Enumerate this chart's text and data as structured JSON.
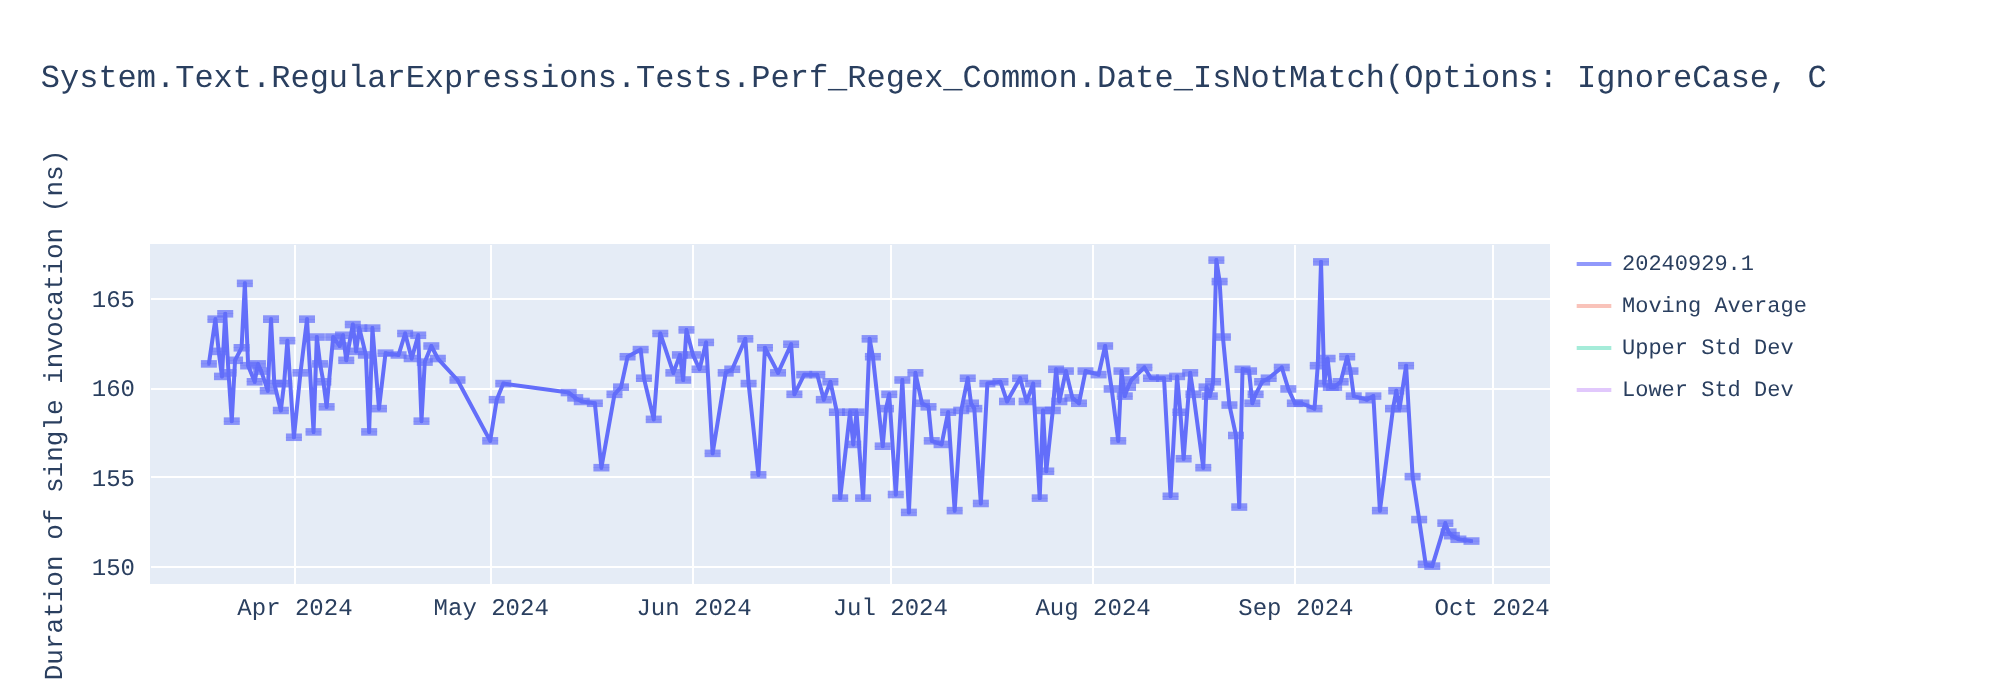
{
  "chart_data": {
    "type": "line",
    "title": "System.Text.RegularExpressions.Tests.Perf_Regex_Common.Date_IsNotMatch(Options: IgnoreCase, C",
    "ylabel": "Duration of single invocation (ns)",
    "x": [
      "2024-03-19",
      "2024-03-20",
      "2024-03-20T12:00",
      "2024-03-21",
      "2024-03-21T12:00",
      "2024-03-22",
      "2024-03-22T12:00",
      "2024-03-23",
      "2024-03-24",
      "2024-03-24T12:00",
      "2024-03-25",
      "2024-03-26",
      "2024-03-26T12:00",
      "2024-03-27",
      "2024-03-28",
      "2024-03-28T12:00",
      "2024-03-29",
      "2024-03-30",
      "2024-03-30T12:00",
      "2024-03-31",
      "2024-04-01",
      "2024-04-02",
      "2024-04-03",
      "2024-04-04",
      "2024-04-04T12:00",
      "2024-04-05",
      "2024-04-05T12:00",
      "2024-04-06",
      "2024-04-07",
      "2024-04-08",
      "2024-04-08T12:00",
      "2024-04-09",
      "2024-04-10",
      "2024-04-10T12:00",
      "2024-04-11",
      "2024-04-12",
      "2024-04-12T12:00",
      "2024-04-13",
      "2024-04-14",
      "2024-04-15",
      "2024-04-17",
      "2024-04-18",
      "2024-04-19",
      "2024-04-20",
      "2024-04-20T12:00",
      "2024-04-21",
      "2024-04-22",
      "2024-04-23",
      "2024-04-26",
      "2024-05-01",
      "2024-05-02",
      "2024-05-03",
      "2024-05-13",
      "2024-05-14",
      "2024-05-15",
      "2024-05-17",
      "2024-05-18",
      "2024-05-20",
      "2024-05-21",
      "2024-05-22",
      "2024-05-24",
      "2024-05-24T12:00",
      "2024-05-26",
      "2024-05-27",
      "2024-05-29",
      "2024-05-30",
      "2024-05-30T12:00",
      "2024-05-31",
      "2024-06-01",
      "2024-06-02",
      "2024-06-03",
      "2024-06-04",
      "2024-06-06",
      "2024-06-07",
      "2024-06-09",
      "2024-06-09T12:00",
      "2024-06-11",
      "2024-06-12",
      "2024-06-14",
      "2024-06-16",
      "2024-06-16T12:00",
      "2024-06-18",
      "2024-06-20",
      "2024-06-21",
      "2024-06-22",
      "2024-06-23",
      "2024-06-23T12:00",
      "2024-06-25",
      "2024-06-25T12:00",
      "2024-06-26",
      "2024-06-27",
      "2024-06-28",
      "2024-06-28T12:00",
      "2024-06-30",
      "2024-06-30T12:00",
      "2024-07-01",
      "2024-07-02",
      "2024-07-03",
      "2024-07-04",
      "2024-07-05",
      "2024-07-06",
      "2024-07-07",
      "2024-07-07T12:00",
      "2024-07-09",
      "2024-07-10",
      "2024-07-11",
      "2024-07-12",
      "2024-07-13",
      "2024-07-13T12:00",
      "2024-07-14",
      "2024-07-15",
      "2024-07-16",
      "2024-07-18",
      "2024-07-19",
      "2024-07-21",
      "2024-07-22",
      "2024-07-23",
      "2024-07-24",
      "2024-07-24T12:00",
      "2024-07-25",
      "2024-07-26",
      "2024-07-26T12:00",
      "2024-07-27",
      "2024-07-28",
      "2024-07-29",
      "2024-07-30",
      "2024-07-31",
      "2024-08-02",
      "2024-08-03",
      "2024-08-04",
      "2024-08-05",
      "2024-08-05T12:00",
      "2024-08-06",
      "2024-08-06T12:00",
      "2024-08-07",
      "2024-08-09",
      "2024-08-10",
      "2024-08-12",
      "2024-08-13",
      "2024-08-14",
      "2024-08-14T12:00",
      "2024-08-15",
      "2024-08-16",
      "2024-08-16T12:00",
      "2024-08-18",
      "2024-08-18T12:00",
      "2024-08-19",
      "2024-08-19T12:00",
      "2024-08-20",
      "2024-08-20T12:00",
      "2024-08-21",
      "2024-08-22",
      "2024-08-23",
      "2024-08-23T12:00",
      "2024-08-24",
      "2024-08-25",
      "2024-08-25T12:00",
      "2024-08-26",
      "2024-08-27",
      "2024-08-28",
      "2024-08-30",
      "2024-08-31",
      "2024-09-01",
      "2024-09-02",
      "2024-09-04",
      "2024-09-04T12:00",
      "2024-09-05",
      "2024-09-05T12:00",
      "2024-09-06",
      "2024-09-06T12:00",
      "2024-09-07",
      "2024-09-08",
      "2024-09-09",
      "2024-09-09T12:00",
      "2024-09-10",
      "2024-09-12",
      "2024-09-13",
      "2024-09-14",
      "2024-09-16",
      "2024-09-16T12:00",
      "2024-09-17",
      "2024-09-18",
      "2024-09-19",
      "2024-09-20",
      "2024-09-21",
      "2024-09-22",
      "2024-09-24",
      "2024-09-24T12:00",
      "2024-09-25",
      "2024-09-26",
      "2024-09-28"
    ],
    "series": [
      {
        "name": "20240929.1",
        "color": "#636efa",
        "values": [
          161.3,
          163.8,
          162.0,
          160.6,
          164.1,
          160.8,
          158.1,
          161.5,
          162.2,
          165.8,
          161.2,
          160.3,
          161.3,
          160.9,
          159.8,
          163.8,
          160.2,
          158.7,
          160.2,
          162.6,
          157.2,
          160.8,
          163.8,
          157.5,
          162.8,
          161.3,
          160.3,
          158.9,
          162.8,
          162.3,
          162.9,
          161.5,
          163.5,
          162.0,
          163.3,
          161.8,
          157.5,
          163.3,
          158.8,
          161.9,
          161.8,
          163.0,
          161.6,
          162.9,
          158.1,
          161.4,
          162.3,
          161.6,
          160.4,
          157.0,
          159.3,
          160.2,
          159.7,
          159.4,
          159.2,
          159.1,
          155.5,
          159.6,
          160.0,
          161.7,
          162.1,
          160.5,
          158.2,
          163.0,
          160.8,
          161.8,
          160.4,
          163.2,
          161.8,
          161.0,
          162.5,
          156.3,
          160.8,
          161.0,
          162.7,
          160.2,
          155.1,
          162.2,
          160.8,
          162.4,
          159.6,
          160.7,
          160.7,
          159.3,
          160.3,
          158.6,
          153.8,
          158.6,
          156.8,
          158.6,
          153.8,
          162.7,
          161.7,
          156.7,
          158.8,
          159.6,
          154.0,
          160.4,
          153.0,
          160.8,
          159.1,
          158.9,
          157.0,
          156.8,
          158.6,
          153.1,
          158.7,
          160.5,
          159.1,
          158.8,
          153.5,
          160.2,
          160.3,
          159.2,
          160.5,
          159.2,
          160.2,
          153.8,
          158.7,
          155.3,
          158.7,
          161.0,
          159.2,
          160.9,
          159.4,
          159.1,
          160.9,
          160.7,
          162.3,
          159.9,
          157.0,
          160.9,
          159.5,
          160.0,
          160.4,
          161.1,
          160.5,
          160.5,
          153.9,
          160.6,
          158.6,
          156.0,
          160.8,
          159.6,
          155.5,
          160.0,
          159.5,
          160.3,
          167.1,
          165.9,
          162.8,
          159.0,
          157.3,
          153.3,
          161.0,
          160.9,
          159.1,
          159.6,
          160.3,
          160.5,
          161.1,
          159.9,
          159.1,
          159.1,
          158.8,
          161.2,
          167.0,
          160.2,
          161.6,
          160.0,
          160.0,
          160.3,
          161.7,
          160.9,
          159.5,
          159.3,
          159.5,
          153.1,
          158.8,
          159.8,
          158.8,
          161.2,
          155.0,
          152.6,
          150.1,
          150.0,
          152.4,
          151.9,
          151.7,
          151.5,
          151.4
        ],
        "errors": [
          0.1,
          0.1,
          0.1,
          0.1,
          0.1,
          0.1,
          0.1,
          0.1,
          0.1,
          0.1,
          0.1,
          0.1,
          0.1,
          0.1,
          0.1,
          0.1,
          0.1,
          0.1,
          0.1,
          0.1,
          0.1,
          0.1,
          0.1,
          0.1,
          0.1,
          0.1,
          0.1,
          0.1,
          0.1,
          0.1,
          0.1,
          0.1,
          0.1,
          0.1,
          0.1,
          0.1,
          0.1,
          0.1,
          0.1,
          0.1,
          0.1,
          0.1,
          0.1,
          0.1,
          0.1,
          0.1,
          0.1,
          0.1,
          0.1,
          0.1,
          0.1,
          0.1,
          0.1,
          0.1,
          0.1,
          0.1,
          0.1,
          0.1,
          0.1,
          0.1,
          0.1,
          0.1,
          0.1,
          0.1,
          0.1,
          0.1,
          0.1,
          0.1,
          0.1,
          0.1,
          0.1,
          0.1,
          0.1,
          0.1,
          0.1,
          0.1,
          0.1,
          0.1,
          0.1,
          0.1,
          0.1,
          0.1,
          0.1,
          0.1,
          0.1,
          0.1,
          0.1,
          0.1,
          0.1,
          0.1,
          0.1,
          0.1,
          0.1,
          0.1,
          0.1,
          0.1,
          0.1,
          0.1,
          0.1,
          0.1,
          0.1,
          0.1,
          0.1,
          0.1,
          0.1,
          0.1,
          0.1,
          0.1,
          0.1,
          0.1,
          0.1,
          0.1,
          0.1,
          0.1,
          0.1,
          0.1,
          0.1,
          0.1,
          0.1,
          0.1,
          0.1,
          0.1,
          0.1,
          0.1,
          0.1,
          0.1,
          0.1,
          0.1,
          0.1,
          0.1,
          0.1,
          0.1,
          0.1,
          0.1,
          0.1,
          0.1,
          0.1,
          0.1,
          0.1,
          0.1,
          0.1,
          0.1,
          0.1,
          0.1,
          0.1,
          0.1,
          0.1,
          0.1,
          0.1,
          0.1,
          0.1,
          0.1,
          0.1,
          0.1,
          0.1,
          0.1,
          0.1,
          0.1,
          0.1,
          0.1,
          0.1,
          0.1,
          0.1,
          0.1,
          0.1,
          0.1,
          0.1,
          0.1,
          0.1,
          0.1,
          0.1,
          0.1,
          0.1,
          0.1,
          0.1,
          0.1,
          0.1,
          0.1,
          0.1,
          0.1,
          0.1,
          0.1,
          0.1,
          0.1,
          0.1,
          0.1,
          0.1,
          0.1,
          0.1,
          0.1,
          0.1
        ]
      },
      {
        "name": "Moving Average",
        "color": "#f7aa9d",
        "values": [
          null,
          null,
          null,
          null,
          null,
          null,
          null,
          null,
          null,
          null,
          null,
          null,
          null,
          null,
          null,
          null,
          null,
          null,
          null,
          null,
          null,
          null,
          null,
          null,
          null,
          null,
          null,
          null,
          null,
          null,
          null,
          null,
          null,
          null,
          null,
          null,
          null,
          null,
          null,
          null,
          null,
          null,
          null,
          null,
          null,
          null,
          null,
          null,
          null,
          null,
          null,
          null,
          null,
          null,
          null,
          null,
          null,
          null,
          null,
          null,
          null,
          null,
          null,
          null,
          null,
          null,
          null,
          null,
          null,
          null,
          null,
          null,
          null,
          null,
          null,
          null,
          null,
          null,
          null,
          null,
          null,
          null,
          null,
          null,
          null,
          null,
          null,
          null,
          null,
          null,
          null,
          null,
          null,
          null,
          null,
          null,
          null,
          null,
          null,
          null,
          null,
          null,
          null,
          null,
          null,
          null,
          null,
          null,
          null,
          null,
          null,
          null,
          null,
          null,
          null,
          null,
          null,
          null,
          null,
          null,
          null,
          null,
          null,
          null,
          null,
          null,
          null,
          null,
          null,
          null,
          null,
          null,
          null,
          null,
          null,
          null,
          null,
          null,
          null,
          null,
          null,
          null,
          null,
          null,
          null,
          null,
          null,
          null,
          null,
          null,
          null,
          null,
          null,
          null,
          null,
          null,
          null,
          null,
          null,
          null,
          null,
          null,
          null,
          null,
          null,
          null,
          null,
          null,
          null,
          null,
          null,
          null,
          null,
          null,
          null,
          null,
          null,
          null,
          null,
          null,
          null,
          null,
          null,
          null,
          null,
          null,
          null,
          null,
          null,
          null,
          null
        ]
      },
      {
        "name": "Upper Std Dev",
        "color": "#7fe5ca",
        "values": [
          null,
          null,
          null,
          null,
          null,
          null,
          null,
          null,
          null,
          null,
          null,
          null,
          null,
          null,
          null,
          null,
          null,
          null,
          null,
          null,
          null,
          null,
          null,
          null,
          null,
          null,
          null,
          null,
          null,
          null,
          null,
          null,
          null,
          null,
          null,
          null,
          null,
          null,
          null,
          null,
          null,
          null,
          null,
          null,
          null,
          null,
          null,
          null,
          null,
          null,
          null,
          null,
          null,
          null,
          null,
          null,
          null,
          null,
          null,
          null,
          null,
          null,
          null,
          null,
          null,
          null,
          null,
          null,
          null,
          null,
          null,
          null,
          null,
          null,
          null,
          null,
          null,
          null,
          null,
          null,
          null,
          null,
          null,
          null,
          null,
          null,
          null,
          null,
          null,
          null,
          null,
          null,
          null,
          null,
          null,
          null,
          null,
          null,
          null,
          null,
          null,
          null,
          null,
          null,
          null,
          null,
          null,
          null,
          null,
          null,
          null,
          null,
          null,
          null,
          null,
          null,
          null,
          null,
          null,
          null,
          null,
          null,
          null,
          null,
          null,
          null,
          null,
          null,
          null,
          null,
          null,
          null,
          null,
          null,
          null,
          null,
          null,
          null,
          null,
          null,
          null,
          null,
          null,
          null,
          null,
          null,
          null,
          null,
          null,
          null,
          null,
          null,
          null,
          null,
          null,
          null,
          null,
          null,
          null,
          null,
          null,
          null,
          null,
          null,
          null,
          null,
          null,
          null,
          null,
          null,
          null,
          null,
          null,
          null,
          null,
          null,
          null,
          null,
          null,
          null,
          null,
          null,
          null,
          null,
          null,
          null,
          null,
          null,
          null,
          null,
          null
        ]
      },
      {
        "name": "Lower Std Dev",
        "color": "#d5b1fc",
        "values": [
          null,
          null,
          null,
          null,
          null,
          null,
          null,
          null,
          null,
          null,
          null,
          null,
          null,
          null,
          null,
          null,
          null,
          null,
          null,
          null,
          null,
          null,
          null,
          null,
          null,
          null,
          null,
          null,
          null,
          null,
          null,
          null,
          null,
          null,
          null,
          null,
          null,
          null,
          null,
          null,
          null,
          null,
          null,
          null,
          null,
          null,
          null,
          null,
          null,
          null,
          null,
          null,
          null,
          null,
          null,
          null,
          null,
          null,
          null,
          null,
          null,
          null,
          null,
          null,
          null,
          null,
          null,
          null,
          null,
          null,
          null,
          null,
          null,
          null,
          null,
          null,
          null,
          null,
          null,
          null,
          null,
          null,
          null,
          null,
          null,
          null,
          null,
          null,
          null,
          null,
          null,
          null,
          null,
          null,
          null,
          null,
          null,
          null,
          null,
          null,
          null,
          null,
          null,
          null,
          null,
          null,
          null,
          null,
          null,
          null,
          null,
          null,
          null,
          null,
          null,
          null,
          null,
          null,
          null,
          null,
          null,
          null,
          null,
          null,
          null,
          null,
          null,
          null,
          null,
          null,
          null,
          null,
          null,
          null,
          null,
          null,
          null,
          null,
          null,
          null,
          null,
          null,
          null,
          null,
          null,
          null,
          null,
          null,
          null,
          null,
          null,
          null,
          null,
          null,
          null,
          null,
          null,
          null,
          null,
          null,
          null,
          null,
          null,
          null,
          null,
          null,
          null,
          null,
          null,
          null,
          null,
          null,
          null,
          null,
          null,
          null,
          null,
          null,
          null,
          null,
          null,
          null,
          null,
          null,
          null,
          null,
          null,
          null,
          null,
          null,
          null
        ]
      }
    ],
    "xlim": [
      "2024-03-10",
      "2024-10-10"
    ],
    "xticks": [
      {
        "value": "2024-04-01",
        "label": "Apr 2024"
      },
      {
        "value": "2024-05-01",
        "label": "May 2024"
      },
      {
        "value": "2024-06-01",
        "label": "Jun 2024"
      },
      {
        "value": "2024-07-01",
        "label": "Jul 2024"
      },
      {
        "value": "2024-08-01",
        "label": "Aug 2024"
      },
      {
        "value": "2024-09-01",
        "label": "Sep 2024"
      },
      {
        "value": "2024-10-01",
        "label": "Oct 2024"
      }
    ],
    "ylim": [
      149,
      168
    ],
    "yticks": [
      150,
      155,
      160,
      165
    ],
    "grid": true,
    "legend": "top right"
  }
}
